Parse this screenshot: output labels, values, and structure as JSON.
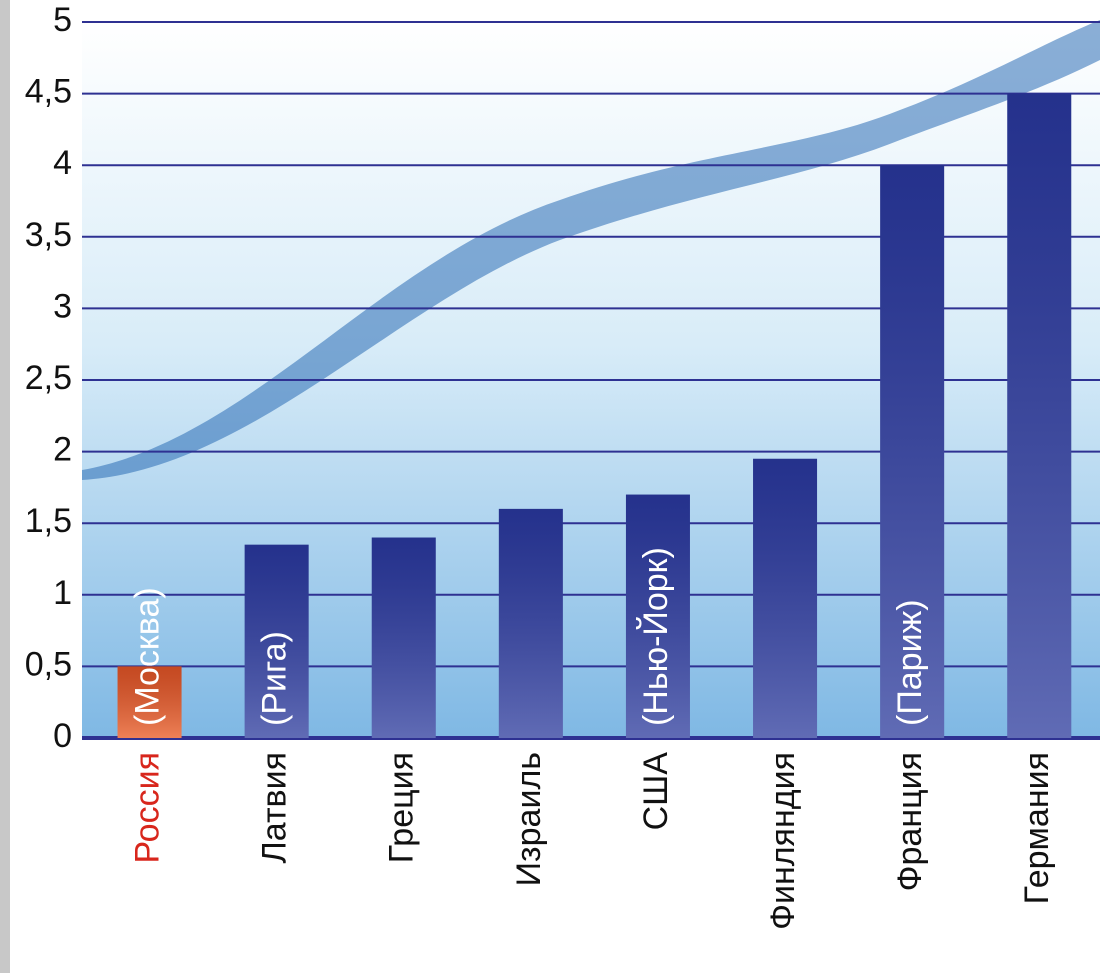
{
  "chart_data": {
    "type": "bar",
    "categories": [
      "Россия",
      "Латвия",
      "Греция",
      "Израиль",
      "США",
      "Финляндия",
      "Франция",
      "Германия"
    ],
    "bar_labels": [
      "(Москва)",
      "(Рига)",
      null,
      null,
      "(Нью-Йорк)",
      null,
      "(Париж)",
      null
    ],
    "values": [
      0.5,
      1.35,
      1.4,
      1.6,
      1.7,
      1.95,
      4,
      4.5
    ],
    "colors": [
      "#e8561e",
      "#2b3a9c",
      "#2b3a9c",
      "#2b3a9c",
      "#2b3a9c",
      "#2b3a9c",
      "#2b3a9c",
      "#2b3a9c"
    ],
    "label_colors": [
      "#d8261c",
      "#111111",
      "#111111",
      "#111111",
      "#111111",
      "#111111",
      "#111111",
      "#111111"
    ],
    "ylim": [
      0,
      5
    ],
    "yticks": [
      0,
      {
        "value": 0.5,
        "label": "0,5"
      },
      1,
      {
        "value": 1.5,
        "label": "1,5"
      },
      2,
      {
        "value": 2.5,
        "label": "2,5"
      },
      3,
      {
        "value": 3.5,
        "label": "3,5"
      },
      4,
      {
        "value": 4.5,
        "label": "4,5"
      },
      5
    ],
    "grid": true
  }
}
